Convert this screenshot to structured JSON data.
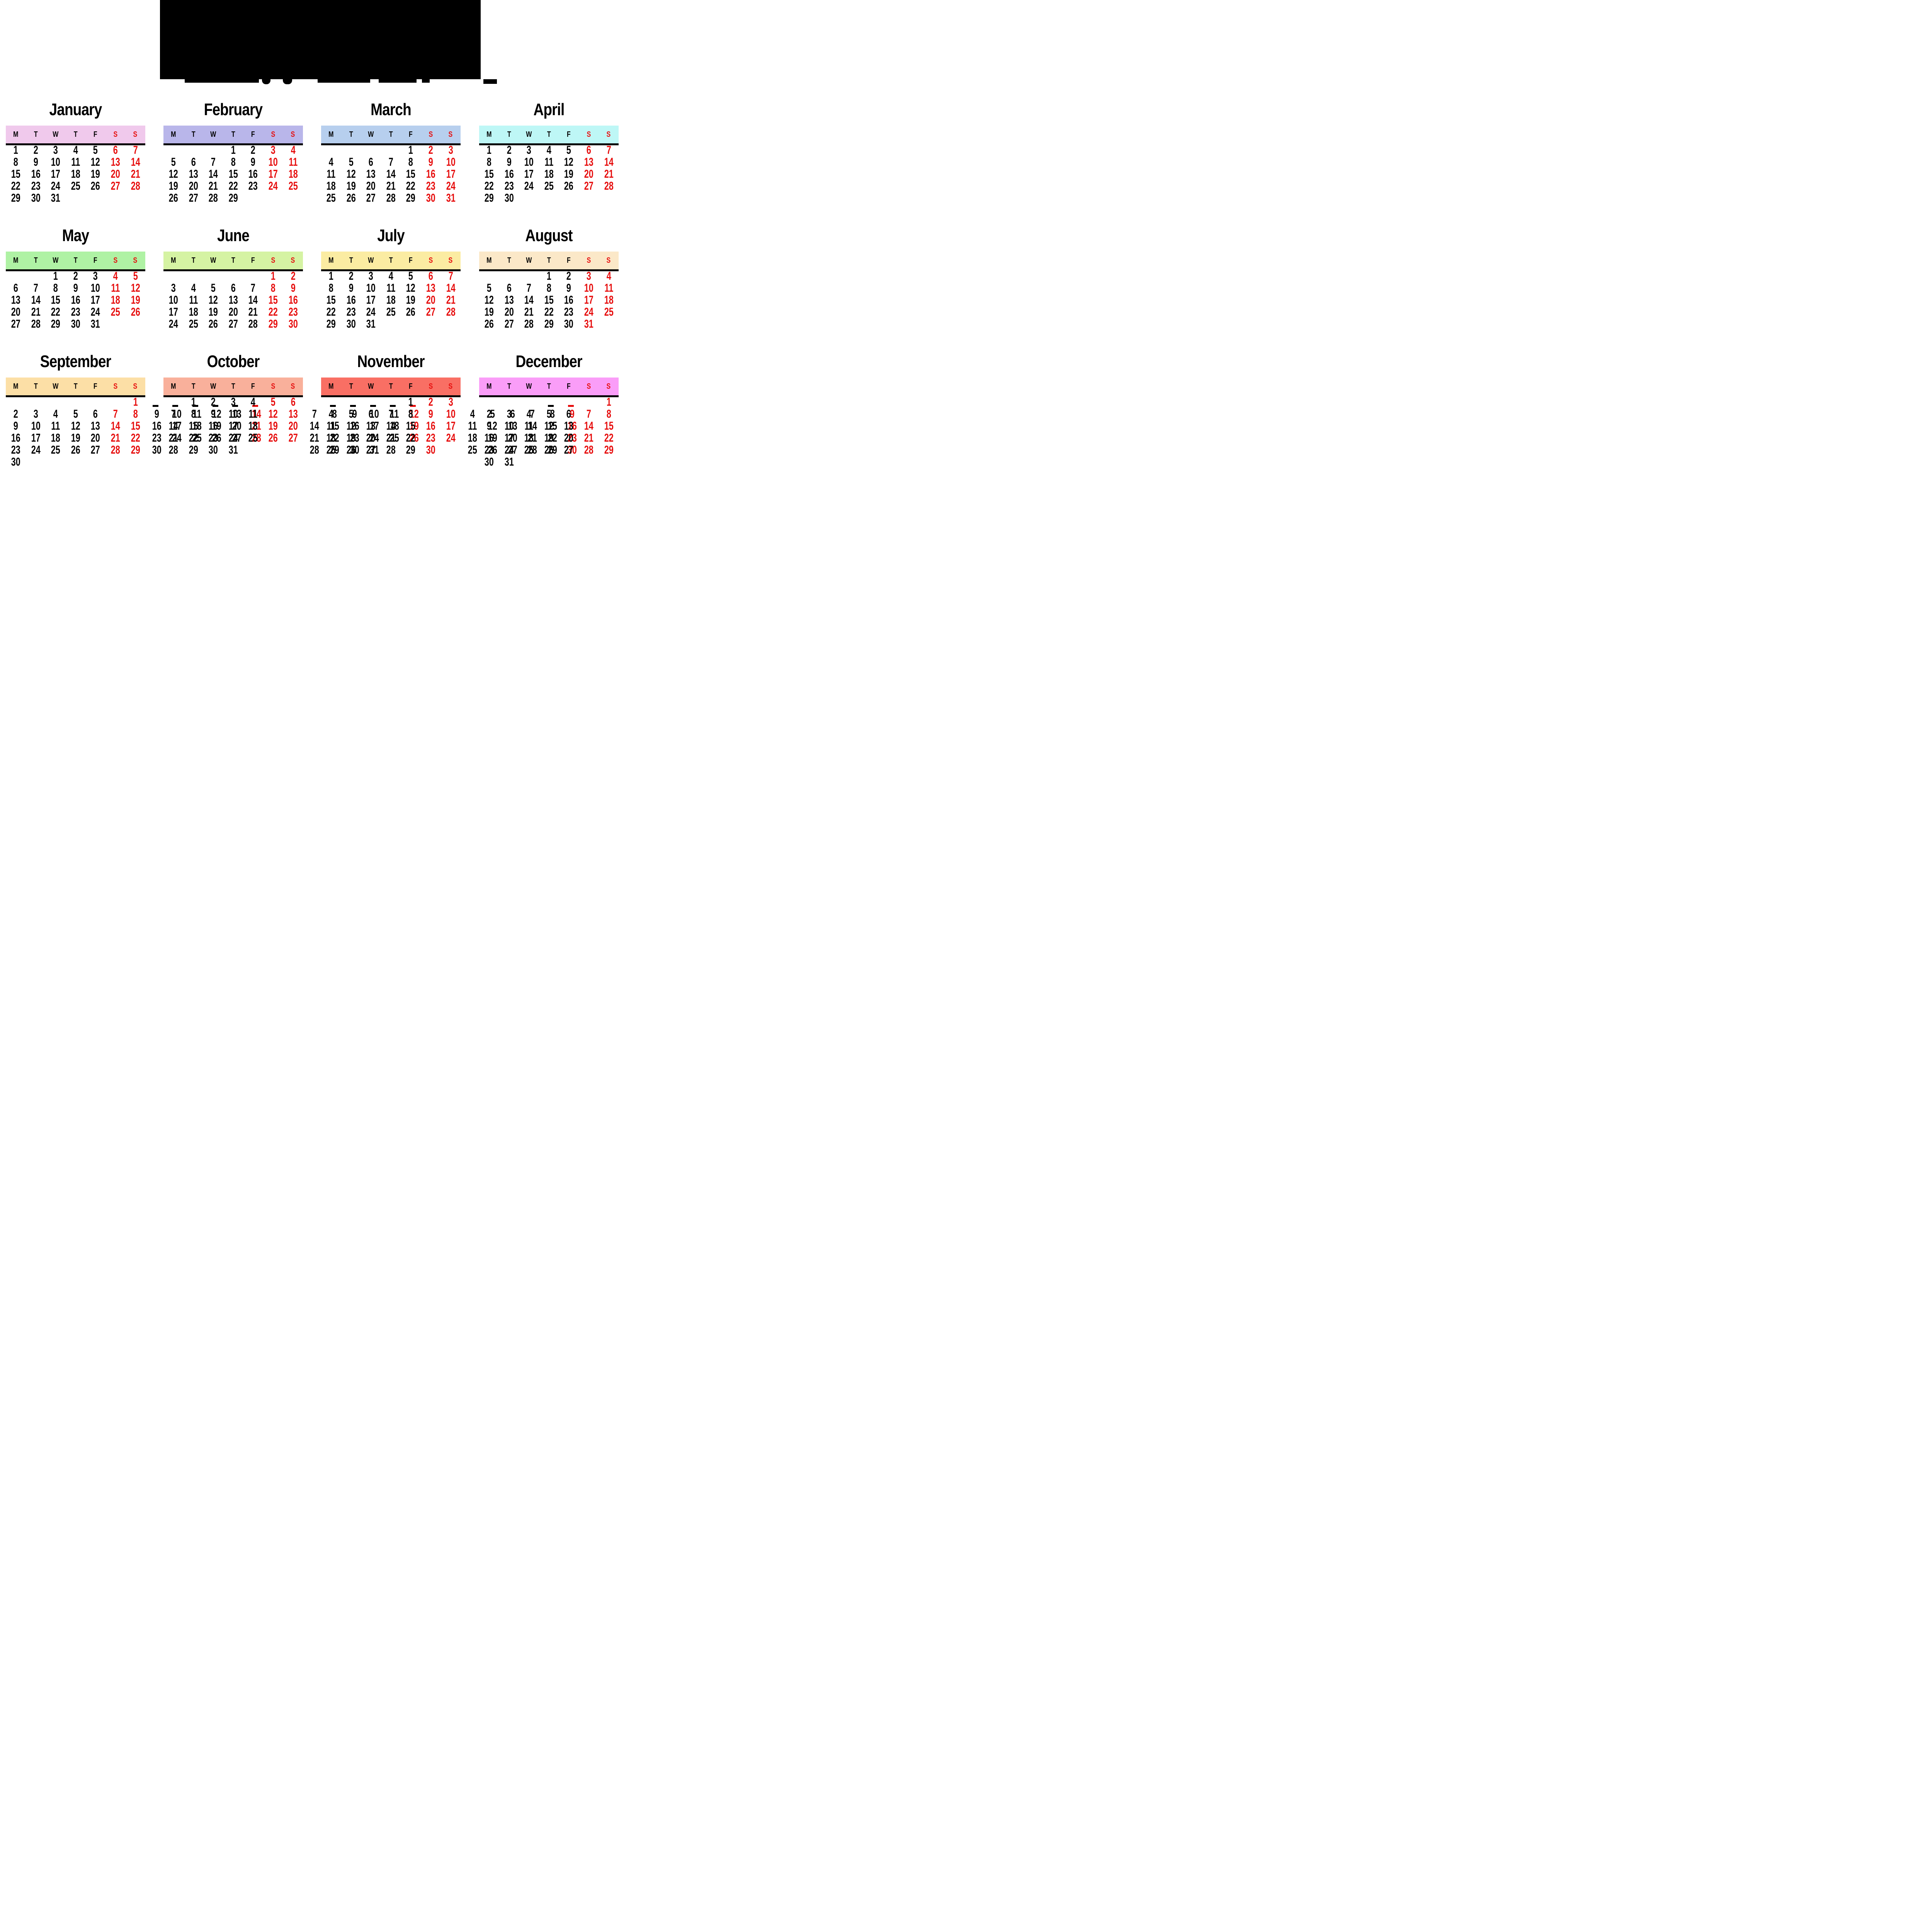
{
  "banner": {
    "type": "glitched-black-year-banner",
    "text_visible": false
  },
  "weekday_headers": [
    "M",
    "T",
    "W",
    "T",
    "F",
    "S",
    "S"
  ],
  "colors": {
    "weekend_red": "#e60c0c",
    "text_black": "#000000",
    "underline": "#000000",
    "background": "#ffffff"
  },
  "months": [
    {
      "name": "January",
      "header_color": "#f0c9ec",
      "weeks": [
        [
          1,
          2,
          3,
          4,
          5,
          6,
          7
        ],
        [
          8,
          9,
          10,
          11,
          12,
          13,
          14
        ],
        [
          15,
          16,
          17,
          18,
          19,
          20,
          21
        ],
        [
          22,
          23,
          24,
          25,
          26,
          27,
          28
        ],
        [
          29,
          30,
          31,
          "",
          "",
          "",
          ""
        ]
      ]
    },
    {
      "name": "February",
      "header_color": "#b9b6ea",
      "weeks": [
        [
          "",
          "",
          "",
          1,
          2,
          3,
          4
        ],
        [
          5,
          6,
          7,
          8,
          9,
          10,
          11
        ],
        [
          12,
          13,
          14,
          15,
          16,
          17,
          18
        ],
        [
          19,
          20,
          21,
          22,
          23,
          24,
          25
        ],
        [
          26,
          27,
          28,
          29,
          "",
          "",
          ""
        ]
      ]
    },
    {
      "name": "March",
      "header_color": "#b7cfee",
      "weeks": [
        [
          "",
          "",
          "",
          "",
          1,
          2,
          3
        ],
        [
          4,
          5,
          6,
          7,
          8,
          9,
          10
        ],
        [
          11,
          12,
          13,
          14,
          15,
          16,
          17
        ],
        [
          18,
          19,
          20,
          21,
          22,
          23,
          24
        ],
        [
          25,
          26,
          27,
          28,
          29,
          30,
          31
        ]
      ]
    },
    {
      "name": "April",
      "header_color": "#bef7f6",
      "weeks": [
        [
          1,
          2,
          3,
          4,
          5,
          6,
          7
        ],
        [
          8,
          9,
          10,
          11,
          12,
          13,
          14
        ],
        [
          15,
          16,
          17,
          18,
          19,
          20,
          21
        ],
        [
          22,
          23,
          24,
          25,
          26,
          27,
          28
        ],
        [
          29,
          30,
          "",
          "",
          "",
          "",
          ""
        ]
      ]
    },
    {
      "name": "May",
      "header_color": "#aff2a4",
      "weeks": [
        [
          "",
          "",
          1,
          2,
          3,
          4,
          5
        ],
        [
          6,
          7,
          8,
          9,
          10,
          11,
          12
        ],
        [
          13,
          14,
          15,
          16,
          17,
          18,
          19
        ],
        [
          20,
          21,
          22,
          23,
          24,
          25,
          26
        ],
        [
          27,
          28,
          29,
          30,
          31,
          "",
          ""
        ]
      ]
    },
    {
      "name": "June",
      "header_color": "#d5f3a3",
      "weeks": [
        [
          "",
          "",
          "",
          "",
          "",
          1,
          2
        ],
        [
          3,
          4,
          5,
          6,
          7,
          8,
          9
        ],
        [
          10,
          11,
          12,
          13,
          14,
          15,
          16
        ],
        [
          17,
          18,
          19,
          20,
          21,
          22,
          23
        ],
        [
          24,
          25,
          26,
          27,
          28,
          29,
          30
        ]
      ]
    },
    {
      "name": "July",
      "header_color": "#fbeca2",
      "weeks": [
        [
          1,
          2,
          3,
          4,
          5,
          6,
          7
        ],
        [
          8,
          9,
          10,
          11,
          12,
          13,
          14
        ],
        [
          15,
          16,
          17,
          18,
          19,
          20,
          21
        ],
        [
          22,
          23,
          24,
          25,
          26,
          27,
          28
        ],
        [
          29,
          30,
          31,
          "",
          "",
          "",
          ""
        ]
      ]
    },
    {
      "name": "August",
      "header_color": "#fbe8c8",
      "weeks": [
        [
          "",
          "",
          "",
          1,
          2,
          3,
          4
        ],
        [
          5,
          6,
          7,
          8,
          9,
          10,
          11
        ],
        [
          12,
          13,
          14,
          15,
          16,
          17,
          18
        ],
        [
          19,
          20,
          21,
          22,
          23,
          24,
          25
        ],
        [
          26,
          27,
          28,
          29,
          30,
          31,
          ""
        ]
      ]
    },
    {
      "name": "September",
      "header_color": "#fcdfa6",
      "weeks": [
        [
          "",
          "",
          "",
          "",
          "",
          "",
          1
        ],
        [
          2,
          3,
          4,
          5,
          6,
          7,
          8
        ],
        [
          9,
          10,
          11,
          12,
          13,
          14,
          15
        ],
        [
          16,
          17,
          18,
          19,
          20,
          21,
          22
        ],
        [
          23,
          24,
          25,
          26,
          27,
          28,
          29
        ],
        [
          30,
          "",
          "",
          "",
          "",
          "",
          ""
        ]
      ]
    },
    {
      "name": "October",
      "header_color": "#f9b09b",
      "weeks": [
        [
          "",
          1,
          2,
          3,
          4,
          5,
          6
        ],
        [
          7,
          8,
          9,
          10,
          11,
          12,
          13
        ],
        [
          14,
          15,
          16,
          17,
          18,
          19,
          20
        ],
        [
          21,
          22,
          23,
          24,
          25,
          26,
          27
        ],
        [
          28,
          29,
          30,
          31,
          "",
          "",
          ""
        ]
      ],
      "ghosts": {
        "numbers": [
          [
            1,
            -1,
            9,
            0
          ],
          [
            1,
            0,
            10,
            0
          ],
          [
            1,
            1,
            11,
            0
          ],
          [
            1,
            2,
            12,
            0
          ],
          [
            1,
            3,
            13,
            0
          ],
          [
            1,
            4,
            14,
            1
          ],
          [
            2,
            -1,
            16,
            0
          ],
          [
            2,
            0,
            17,
            0
          ],
          [
            2,
            1,
            18,
            0
          ],
          [
            2,
            2,
            19,
            0
          ],
          [
            2,
            3,
            20,
            0
          ],
          [
            2,
            4,
            21,
            1
          ],
          [
            3,
            -1,
            23,
            0
          ],
          [
            3,
            0,
            24,
            0
          ],
          [
            3,
            1,
            25,
            0
          ],
          [
            3,
            2,
            26,
            0
          ],
          [
            3,
            3,
            27,
            0
          ],
          [
            3,
            4,
            28,
            1
          ],
          [
            4,
            -1,
            30,
            0
          ]
        ],
        "feet": [
          [
            -1,
            0
          ],
          [
            0,
            0
          ],
          [
            1,
            0
          ],
          [
            2,
            0
          ],
          [
            3,
            0
          ],
          [
            4,
            1
          ]
        ]
      }
    },
    {
      "name": "November",
      "header_color": "#f96f64",
      "weeks": [
        [
          "",
          "",
          "",
          "",
          1,
          2,
          3
        ],
        [
          4,
          5,
          6,
          7,
          8,
          9,
          10
        ],
        [
          11,
          12,
          13,
          14,
          15,
          16,
          17
        ],
        [
          18,
          19,
          20,
          21,
          22,
          23,
          24
        ],
        [
          25,
          26,
          27,
          28,
          29,
          30,
          ""
        ]
      ],
      "ghosts": {
        "numbers": [
          [
            1,
            -1,
            7,
            0
          ],
          [
            1,
            0,
            8,
            0
          ],
          [
            1,
            1,
            9,
            0
          ],
          [
            1,
            2,
            10,
            0
          ],
          [
            1,
            3,
            11,
            0
          ],
          [
            1,
            4,
            12,
            1
          ],
          [
            2,
            -1,
            14,
            0
          ],
          [
            2,
            0,
            15,
            0
          ],
          [
            2,
            1,
            16,
            0
          ],
          [
            2,
            2,
            17,
            0
          ],
          [
            2,
            3,
            18,
            0
          ],
          [
            2,
            4,
            19,
            1
          ],
          [
            3,
            -1,
            21,
            0
          ],
          [
            3,
            0,
            22,
            0
          ],
          [
            3,
            1,
            23,
            0
          ],
          [
            3,
            2,
            24,
            0
          ],
          [
            3,
            3,
            25,
            0
          ],
          [
            3,
            4,
            26,
            1
          ],
          [
            4,
            -1,
            28,
            0
          ],
          [
            4,
            0,
            29,
            0
          ],
          [
            4,
            1,
            30,
            0
          ],
          [
            4,
            2,
            31,
            0
          ]
        ],
        "feet": [
          [
            0,
            0
          ],
          [
            1,
            0
          ],
          [
            2,
            0
          ],
          [
            3,
            0
          ],
          [
            4,
            1
          ]
        ]
      }
    },
    {
      "name": "December",
      "header_color": "#fa9df8",
      "weeks": [
        [
          "",
          "",
          "",
          "",
          "",
          "",
          1
        ],
        [
          2,
          3,
          4,
          5,
          6,
          7,
          8
        ],
        [
          9,
          10,
          11,
          12,
          13,
          14,
          15
        ],
        [
          16,
          17,
          18,
          19,
          20,
          21,
          22
        ],
        [
          23,
          24,
          25,
          26,
          27,
          28,
          29
        ],
        [
          30,
          31,
          "",
          "",
          "",
          "",
          ""
        ]
      ],
      "ghosts": {
        "numbers": [
          [
            1,
            -1,
            4,
            0
          ],
          [
            1,
            0,
            5,
            0
          ],
          [
            1,
            1,
            6,
            0
          ],
          [
            1,
            2,
            7,
            0
          ],
          [
            1,
            3,
            8,
            0
          ],
          [
            1,
            4,
            9,
            1
          ],
          [
            2,
            -1,
            11,
            0
          ],
          [
            2,
            0,
            12,
            0
          ],
          [
            2,
            1,
            13,
            0
          ],
          [
            2,
            2,
            14,
            0
          ],
          [
            2,
            3,
            15,
            0
          ],
          [
            2,
            4,
            16,
            1
          ],
          [
            3,
            -1,
            18,
            0
          ],
          [
            3,
            0,
            19,
            0
          ],
          [
            3,
            1,
            20,
            0
          ],
          [
            3,
            2,
            21,
            0
          ],
          [
            3,
            3,
            22,
            0
          ],
          [
            3,
            4,
            23,
            1
          ],
          [
            4,
            -1,
            25,
            0
          ],
          [
            4,
            0,
            26,
            0
          ],
          [
            4,
            1,
            27,
            0
          ],
          [
            4,
            2,
            28,
            0
          ],
          [
            4,
            3,
            29,
            0
          ],
          [
            4,
            4,
            30,
            1
          ]
        ],
        "feet": [
          [
            3,
            0
          ],
          [
            4,
            1
          ]
        ]
      }
    }
  ]
}
